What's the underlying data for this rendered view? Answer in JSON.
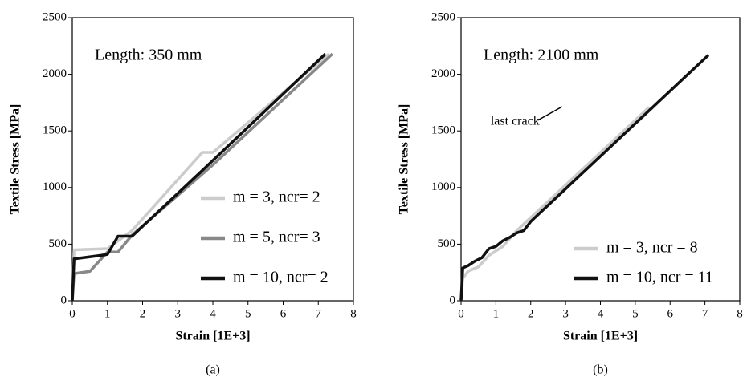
{
  "chart_data": [
    {
      "type": "line",
      "caption": "(a)",
      "annotation": "Length: 350 mm",
      "xlabel": "Strain [1E+3]",
      "ylabel": "Textile Stress [MPa]",
      "xlim": [
        0,
        8
      ],
      "ylim": [
        0,
        2500
      ],
      "xticks": [
        0,
        1,
        2,
        3,
        4,
        5,
        6,
        7,
        8
      ],
      "yticks": [
        0,
        500,
        1000,
        1500,
        2000,
        2500
      ],
      "legend": "lower right",
      "series": [
        {
          "name": "m = 3, ncr= 2",
          "color": "#cccccc",
          "x": [
            0,
            0.05,
            1,
            1.7,
            3.7,
            4.0,
            7.3
          ],
          "values": [
            0,
            450,
            460,
            620,
            1310,
            1310,
            2180
          ]
        },
        {
          "name": "m = 5, ncr= 3",
          "color": "#888888",
          "x": [
            0,
            0.05,
            0.5,
            1.0,
            1.3,
            1.7,
            4.0,
            7.4
          ],
          "values": [
            0,
            240,
            260,
            430,
            430,
            580,
            1200,
            2180
          ]
        },
        {
          "name": "m = 10, ncr= 2",
          "color": "#111111",
          "x": [
            0,
            0.05,
            0.8,
            1.0,
            1.3,
            1.7,
            3.8,
            7.2
          ],
          "values": [
            0,
            370,
            400,
            410,
            570,
            570,
            1180,
            2180
          ]
        }
      ]
    },
    {
      "type": "line",
      "caption": "(b)",
      "annotation": "Length: 2100 mm",
      "note": "last crack",
      "xlabel": "Strain [1E+3]",
      "ylabel": "Textile Stress [MPa]",
      "xlim": [
        0,
        8
      ],
      "ylim": [
        0,
        2500
      ],
      "xticks": [
        0,
        1,
        2,
        3,
        4,
        5,
        6,
        7,
        8
      ],
      "yticks": [
        0,
        500,
        1000,
        1500,
        2000,
        2500
      ],
      "legend": "lower right",
      "series": [
        {
          "name": "m = 3, ncr = 8",
          "color": "#cccccc",
          "x": [
            0,
            0.05,
            0.2,
            0.5,
            0.8,
            1.2,
            1.6,
            5.4
          ],
          "values": [
            0,
            200,
            260,
            300,
            400,
            480,
            620,
            1710
          ]
        },
        {
          "name": "m = 10, ncr = 11",
          "color": "#111111",
          "x": [
            0,
            0.05,
            0.2,
            0.4,
            0.6,
            0.8,
            1.0,
            1.2,
            1.4,
            1.6,
            1.8,
            2.0,
            7.1
          ],
          "values": [
            0,
            290,
            310,
            350,
            380,
            460,
            480,
            530,
            560,
            600,
            620,
            700,
            2170
          ]
        }
      ]
    }
  ]
}
